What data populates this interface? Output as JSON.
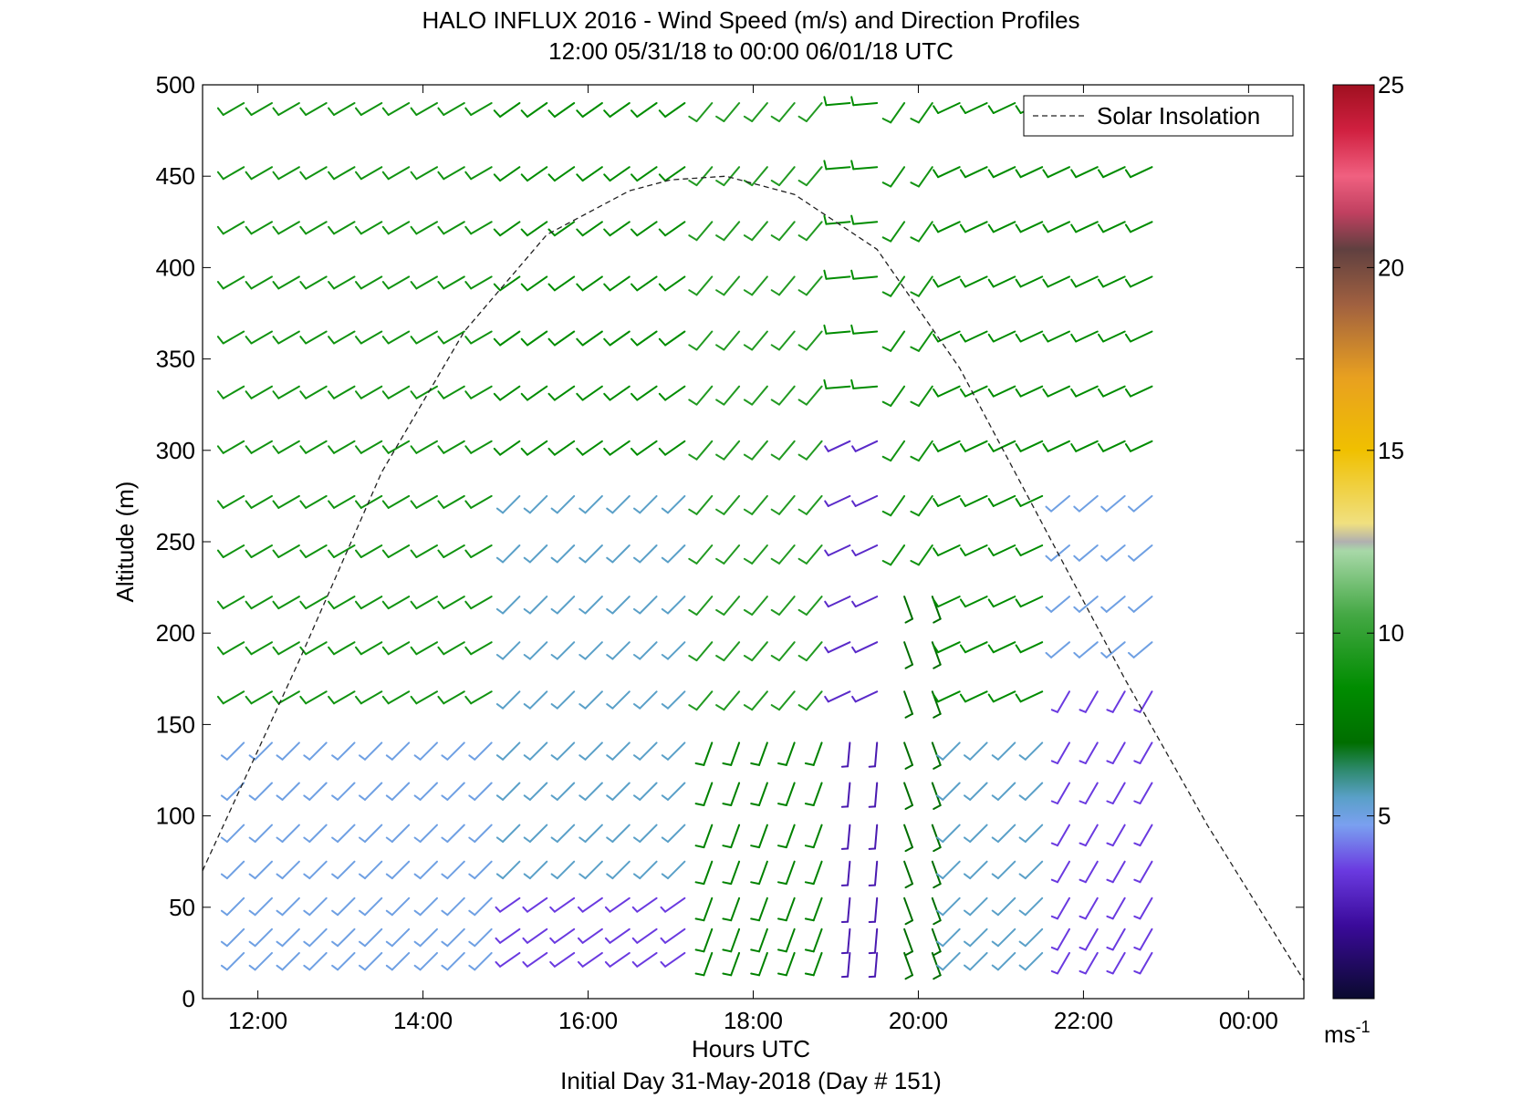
{
  "chart_data": {
    "type": "wind-barb-profile",
    "title": "HALO INFLUX 2016 - Wind Speed (m/s) and Direction Profiles",
    "subtitle": "12:00 05/31/18 to 00:00 06/01/18  UTC",
    "xlabel": "Hours UTC",
    "xlabel2": "Initial Day 31-May-2018 (Day # 151)",
    "ylabel": "Altitude (m)",
    "xlim": [
      11.33,
      24.67
    ],
    "ylim": [
      0,
      500
    ],
    "x_ticks": [
      12,
      14,
      16,
      18,
      20,
      22,
      24
    ],
    "x_tick_labels": [
      "12:00",
      "14:00",
      "16:00",
      "18:00",
      "20:00",
      "22:00",
      "00:00"
    ],
    "y_ticks": [
      0,
      50,
      100,
      150,
      200,
      250,
      300,
      350,
      400,
      450,
      500
    ],
    "y_tick_labels": [
      "0",
      "50",
      "100",
      "150",
      "200",
      "250",
      "300",
      "350",
      "400",
      "450",
      "500"
    ],
    "legend": {
      "entries": [
        "Solar Insolation"
      ],
      "placement": "top-right"
    },
    "colorbar": {
      "range": [
        0,
        25
      ],
      "ticks": [
        5,
        10,
        15,
        20,
        25
      ],
      "tick_labels": [
        "5",
        "10",
        "15",
        "20",
        "25"
      ],
      "unit_label": "ms",
      "unit_exponent": "-1",
      "stops": [
        [
          0.0,
          "#0a0a2e"
        ],
        [
          0.08,
          "#3a0a9a"
        ],
        [
          0.14,
          "#6a3ae0"
        ],
        [
          0.19,
          "#7aa0f0"
        ],
        [
          0.22,
          "#5aa0c8"
        ],
        [
          0.25,
          "#2e8a6e"
        ],
        [
          0.28,
          "#006e00"
        ],
        [
          0.34,
          "#008c00"
        ],
        [
          0.42,
          "#44a844"
        ],
        [
          0.49,
          "#a8d8a8"
        ],
        [
          0.5,
          "#b0b0b0"
        ],
        [
          0.52,
          "#f0e080"
        ],
        [
          0.6,
          "#f0c000"
        ],
        [
          0.68,
          "#e8a020"
        ],
        [
          0.76,
          "#a06040"
        ],
        [
          0.82,
          "#604040"
        ],
        [
          0.86,
          "#c04060"
        ],
        [
          0.9,
          "#f06080"
        ],
        [
          0.95,
          "#d02040"
        ],
        [
          1.0,
          "#a01020"
        ]
      ]
    },
    "solar_insolation_curve": {
      "description": "dashed curve",
      "x": [
        11.33,
        12.5,
        13.5,
        14.5,
        15.5,
        16.5,
        17.0,
        17.67,
        18.5,
        19.5,
        20.5,
        21.5,
        22.5,
        23.5,
        24.67
      ],
      "y": [
        70,
        185,
        288,
        365,
        418,
        442,
        448,
        450,
        440,
        410,
        345,
        260,
        175,
        95,
        10
      ]
    },
    "wind_profiles": {
      "times": [
        11.83,
        12.17,
        12.5,
        12.83,
        13.17,
        13.5,
        13.83,
        14.17,
        14.5,
        14.83,
        15.17,
        15.5,
        15.83,
        16.17,
        16.5,
        16.83,
        17.17,
        17.5,
        17.83,
        18.17,
        18.5,
        18.83,
        19.17,
        19.5,
        19.83,
        20.17,
        20.5,
        20.83,
        21.17,
        21.5,
        21.83,
        22.17,
        22.5,
        22.83
      ],
      "altitudes": [
        25,
        38,
        55,
        75,
        95,
        118,
        140,
        168,
        195,
        220,
        248,
        275,
        305,
        335,
        365,
        395,
        425,
        455,
        490
      ],
      "note": "direction = wind-from direction (degrees); speed in m/s; regime per hour block",
      "regimes": [
        {
          "t_from": 11.5,
          "t_to": 15.0,
          "alt_from": 0,
          "alt_to": 160,
          "dir": 225,
          "speed": 5.0
        },
        {
          "t_from": 11.5,
          "t_to": 15.0,
          "alt_from": 160,
          "alt_to": 500,
          "dir": 240,
          "speed": 9.0
        },
        {
          "t_from": 15.0,
          "t_to": 17.5,
          "alt_from": 0,
          "alt_to": 60,
          "dir": 235,
          "speed": 3.5
        },
        {
          "t_from": 15.0,
          "t_to": 17.5,
          "alt_from": 60,
          "alt_to": 300,
          "dir": 225,
          "speed": 5.5
        },
        {
          "t_from": 15.0,
          "t_to": 17.5,
          "alt_from": 300,
          "alt_to": 500,
          "dir": 235,
          "speed": 8.5
        },
        {
          "t_from": 17.5,
          "t_to": 19.0,
          "alt_from": 0,
          "alt_to": 160,
          "dir": 200,
          "speed": 8.0
        },
        {
          "t_from": 17.5,
          "t_to": 19.0,
          "alt_from": 160,
          "alt_to": 500,
          "dir": 220,
          "speed": 9.5
        },
        {
          "t_from": 19.0,
          "t_to": 19.6,
          "alt_from": 0,
          "alt_to": 160,
          "dir": 185,
          "speed": 2.5
        },
        {
          "t_from": 19.0,
          "t_to": 19.6,
          "alt_from": 160,
          "alt_to": 330,
          "dir": 245,
          "speed": 3.0
        },
        {
          "t_from": 19.0,
          "t_to": 19.6,
          "alt_from": 330,
          "alt_to": 500,
          "dir": 265,
          "speed": 8.5
        },
        {
          "t_from": 19.6,
          "t_to": 20.3,
          "alt_from": 0,
          "alt_to": 240,
          "dir": 160,
          "speed": 7.0
        },
        {
          "t_from": 19.6,
          "t_to": 20.3,
          "alt_from": 240,
          "alt_to": 500,
          "dir": 215,
          "speed": 9.0
        },
        {
          "t_from": 20.3,
          "t_to": 21.7,
          "alt_from": 0,
          "alt_to": 160,
          "dir": 225,
          "speed": 5.5
        },
        {
          "t_from": 20.3,
          "t_to": 21.7,
          "alt_from": 160,
          "alt_to": 500,
          "dir": 245,
          "speed": 8.5
        },
        {
          "t_from": 21.7,
          "t_to": 23.0,
          "alt_from": 0,
          "alt_to": 180,
          "dir": 210,
          "speed": 3.5
        },
        {
          "t_from": 21.7,
          "t_to": 23.0,
          "alt_from": 180,
          "alt_to": 280,
          "dir": 230,
          "speed": 5.0
        },
        {
          "t_from": 21.7,
          "t_to": 23.0,
          "alt_from": 280,
          "alt_to": 500,
          "dir": 245,
          "speed": 8.5
        }
      ]
    }
  }
}
